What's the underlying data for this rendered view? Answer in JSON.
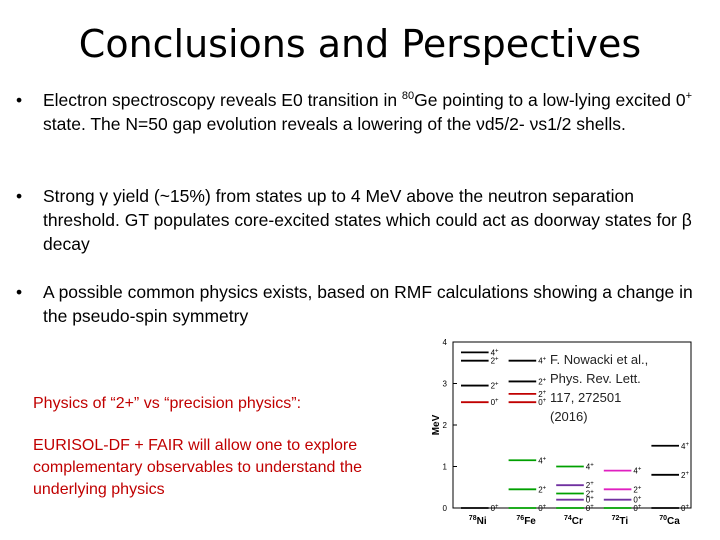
{
  "title": "Conclusions and Perspectives",
  "bullet_char": "•",
  "bullets": [
    {
      "pre": "Electron spectroscopy reveals E0 transition in ",
      "sup": "80",
      "mid": "Ge pointing to a low-lying excited 0",
      "sup2": "+",
      "post": " state. The N=50 gap evolution reveals a lowering of the νd5/2- νs1/2 shells."
    },
    {
      "text": "Strong γ yield (~15%) from states up to 4 MeV above the  neutron separation threshold.  GT populates core-excited states which could act as doorway states for β decay"
    },
    {
      "text": "A possible common physics exists, based on RMF calculations showing a change in the pseudo-spin symmetry"
    }
  ],
  "red_text": {
    "line1": "Physics of “2+” vs “precision physics”:",
    "line2": "EURISOL-DF + FAIR will allow one to explore complementary observables to understand the underlying physics"
  },
  "citation": "F. Nowacki et al., Phys. Rev. Lett. 117, 272501 (2016)",
  "chart_data": {
    "type": "level-scheme",
    "ylabel": "MeV",
    "ylim": [
      0,
      4
    ],
    "yticks": [
      "0",
      "1",
      "2",
      "3",
      "4"
    ],
    "nuclei": [
      {
        "label": "78Ni",
        "mass": "78",
        "element": "Ni",
        "levels": [
          {
            "energy": 0,
            "label": "0+",
            "color": "#000000"
          },
          {
            "energy": 2.55,
            "label": "0+",
            "color": "#c00000"
          },
          {
            "energy": 2.95,
            "label": "2+",
            "color": "#000000"
          },
          {
            "energy": 3.55,
            "label": "2+",
            "color": "#000000"
          },
          {
            "energy": 3.75,
            "label": "4+",
            "color": "#000000"
          }
        ]
      },
      {
        "label": "76Fe",
        "mass": "76",
        "element": "Fe",
        "levels": [
          {
            "energy": 0,
            "label": "0+",
            "color": "#00a000"
          },
          {
            "energy": 0.45,
            "label": "2+",
            "color": "#00a000"
          },
          {
            "energy": 1.15,
            "label": "4+",
            "color": "#00a000"
          },
          {
            "energy": 2.55,
            "label": "0+",
            "color": "#c00000"
          },
          {
            "energy": 2.75,
            "label": "2+",
            "color": "#c00000"
          },
          {
            "energy": 3.05,
            "label": "2+",
            "color": "#000000"
          },
          {
            "energy": 3.55,
            "label": "4+",
            "color": "#000000"
          }
        ]
      },
      {
        "label": "74Cr",
        "mass": "74",
        "element": "Cr",
        "levels": [
          {
            "energy": 0,
            "label": "0+",
            "color": "#00a000"
          },
          {
            "energy": 0.2,
            "label": "0+",
            "color": "#7030a0"
          },
          {
            "energy": 0.35,
            "label": "2+",
            "color": "#00a000"
          },
          {
            "energy": 0.55,
            "label": "2+",
            "color": "#7030a0"
          },
          {
            "energy": 1.0,
            "label": "4+",
            "color": "#00a000"
          }
        ]
      },
      {
        "label": "72Ti",
        "mass": "72",
        "element": "Ti",
        "levels": [
          {
            "energy": 0,
            "label": "0+",
            "color": "#00a000"
          },
          {
            "energy": 0.2,
            "label": "0+",
            "color": "#7030a0"
          },
          {
            "energy": 0.45,
            "label": "2+",
            "color": "#e020c0"
          },
          {
            "energy": 0.9,
            "label": "4+",
            "color": "#e020c0"
          }
        ]
      },
      {
        "label": "70Ca",
        "mass": "70",
        "element": "Ca",
        "levels": [
          {
            "energy": 0,
            "label": "0+",
            "color": "#000000"
          },
          {
            "energy": 0.8,
            "label": "2+",
            "color": "#000000"
          },
          {
            "energy": 1.5,
            "label": "4+",
            "color": "#000000"
          }
        ]
      }
    ]
  }
}
